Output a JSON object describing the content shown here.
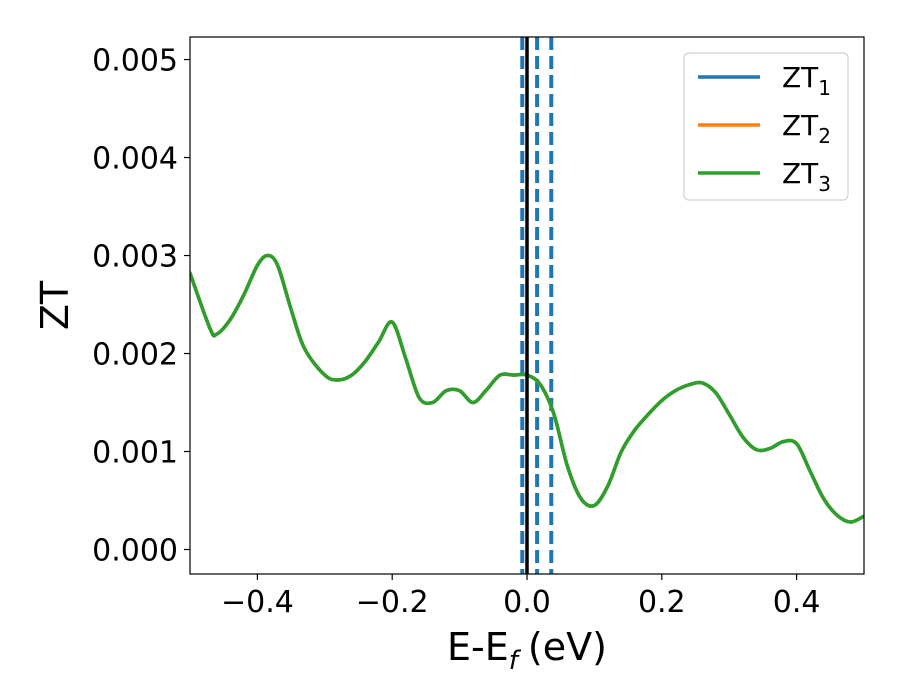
{
  "chart_data": {
    "type": "line",
    "xlabel": "E-E",
    "xlabel_sub": "f",
    "xlabel_unit": "(eV)",
    "ylabel": "ZT",
    "xlim": [
      -0.5,
      0.5
    ],
    "ylim": [
      -0.00025,
      0.00523
    ],
    "xticks": [
      -0.4,
      -0.2,
      0.0,
      0.2,
      0.4
    ],
    "xtick_labels": [
      "−0.4",
      "−0.2",
      "0.0",
      "0.2",
      "0.4"
    ],
    "yticks": [
      0.0,
      0.001,
      0.002,
      0.003,
      0.004,
      0.005
    ],
    "ytick_labels": [
      "0.000",
      "0.001",
      "0.002",
      "0.003",
      "0.004",
      "0.005"
    ],
    "grid": false,
    "legend_position": "top-right",
    "series": [
      {
        "name": "ZT",
        "name_sub": "1",
        "color": "#1f77b4",
        "x": [
          -0.5,
          -0.47,
          -0.46,
          -0.44,
          -0.42,
          -0.4,
          -0.385,
          -0.37,
          -0.35,
          -0.33,
          -0.3,
          -0.28,
          -0.26,
          -0.24,
          -0.22,
          -0.2,
          -0.18,
          -0.16,
          -0.14,
          -0.12,
          -0.1,
          -0.08,
          -0.06,
          -0.04,
          -0.02,
          0.0,
          0.02,
          0.04,
          0.06,
          0.08,
          0.1,
          0.12,
          0.14,
          0.16,
          0.18,
          0.2,
          0.22,
          0.24,
          0.26,
          0.28,
          0.3,
          0.32,
          0.34,
          0.36,
          0.38,
          0.4,
          0.42,
          0.44,
          0.46,
          0.48,
          0.5
        ],
        "y": [
          0.00282,
          0.00225,
          0.0022,
          0.00235,
          0.0026,
          0.0029,
          0.003,
          0.0029,
          0.00245,
          0.00205,
          0.00178,
          0.00173,
          0.00178,
          0.00192,
          0.00212,
          0.00232,
          0.00195,
          0.00155,
          0.0015,
          0.00162,
          0.00162,
          0.0015,
          0.00163,
          0.00178,
          0.00178,
          0.00178,
          0.00168,
          0.00138,
          0.00085,
          0.00052,
          0.00045,
          0.00065,
          0.001,
          0.00122,
          0.00138,
          0.00152,
          0.00162,
          0.00168,
          0.0017,
          0.0016,
          0.00138,
          0.00115,
          0.00102,
          0.00103,
          0.0011,
          0.00108,
          0.0008,
          0.00052,
          0.00035,
          0.00028,
          0.00034
        ]
      },
      {
        "name": "ZT",
        "name_sub": "2",
        "color": "#ff7f0e",
        "x": [
          -0.5,
          -0.47,
          -0.46,
          -0.44,
          -0.42,
          -0.4,
          -0.385,
          -0.37,
          -0.35,
          -0.33,
          -0.3,
          -0.28,
          -0.26,
          -0.24,
          -0.22,
          -0.2,
          -0.18,
          -0.16,
          -0.14,
          -0.12,
          -0.1,
          -0.08,
          -0.06,
          -0.04,
          -0.02,
          0.0,
          0.02,
          0.04,
          0.06,
          0.08,
          0.1,
          0.12,
          0.14,
          0.16,
          0.18,
          0.2,
          0.22,
          0.24,
          0.26,
          0.28,
          0.3,
          0.32,
          0.34,
          0.36,
          0.38,
          0.4,
          0.42,
          0.44,
          0.46,
          0.48,
          0.5
        ],
        "y": [
          0.00282,
          0.00225,
          0.0022,
          0.00235,
          0.0026,
          0.0029,
          0.003,
          0.0029,
          0.00245,
          0.00205,
          0.00178,
          0.00173,
          0.00178,
          0.00192,
          0.00212,
          0.00232,
          0.00195,
          0.00155,
          0.0015,
          0.00162,
          0.00162,
          0.0015,
          0.00163,
          0.00178,
          0.00178,
          0.00178,
          0.00168,
          0.00138,
          0.00085,
          0.00052,
          0.00045,
          0.00065,
          0.001,
          0.00122,
          0.00138,
          0.00152,
          0.00162,
          0.00168,
          0.0017,
          0.0016,
          0.00138,
          0.00115,
          0.00102,
          0.00103,
          0.0011,
          0.00108,
          0.0008,
          0.00052,
          0.00035,
          0.00028,
          0.00034
        ]
      },
      {
        "name": "ZT",
        "name_sub": "3",
        "color": "#2ca02c",
        "x": [
          -0.5,
          -0.47,
          -0.46,
          -0.44,
          -0.42,
          -0.4,
          -0.385,
          -0.37,
          -0.35,
          -0.33,
          -0.3,
          -0.28,
          -0.26,
          -0.24,
          -0.22,
          -0.2,
          -0.18,
          -0.16,
          -0.14,
          -0.12,
          -0.1,
          -0.08,
          -0.06,
          -0.04,
          -0.02,
          0.0,
          0.02,
          0.04,
          0.06,
          0.08,
          0.1,
          0.12,
          0.14,
          0.16,
          0.18,
          0.2,
          0.22,
          0.24,
          0.26,
          0.28,
          0.3,
          0.32,
          0.34,
          0.36,
          0.38,
          0.4,
          0.42,
          0.44,
          0.46,
          0.48,
          0.5
        ],
        "y": [
          0.00282,
          0.00225,
          0.0022,
          0.00235,
          0.0026,
          0.0029,
          0.003,
          0.0029,
          0.00245,
          0.00205,
          0.00178,
          0.00173,
          0.00178,
          0.00192,
          0.00212,
          0.00232,
          0.00195,
          0.00155,
          0.0015,
          0.00162,
          0.00162,
          0.0015,
          0.00163,
          0.00178,
          0.00178,
          0.00178,
          0.00168,
          0.00138,
          0.00085,
          0.00052,
          0.00045,
          0.00065,
          0.001,
          0.00122,
          0.00138,
          0.00152,
          0.00162,
          0.00168,
          0.0017,
          0.0016,
          0.00138,
          0.00115,
          0.00102,
          0.00103,
          0.0011,
          0.00108,
          0.0008,
          0.00052,
          0.00035,
          0.00028,
          0.00034
        ]
      }
    ],
    "vertical_lines": [
      {
        "x": -0.007,
        "style": "dashed",
        "color": "#1f77b4"
      },
      {
        "x": 0.015,
        "style": "dashed",
        "color": "#1f77b4"
      },
      {
        "x": 0.036,
        "style": "dashed",
        "color": "#1f77b4"
      },
      {
        "x": 0.0,
        "style": "solid",
        "color": "#000000"
      }
    ]
  }
}
